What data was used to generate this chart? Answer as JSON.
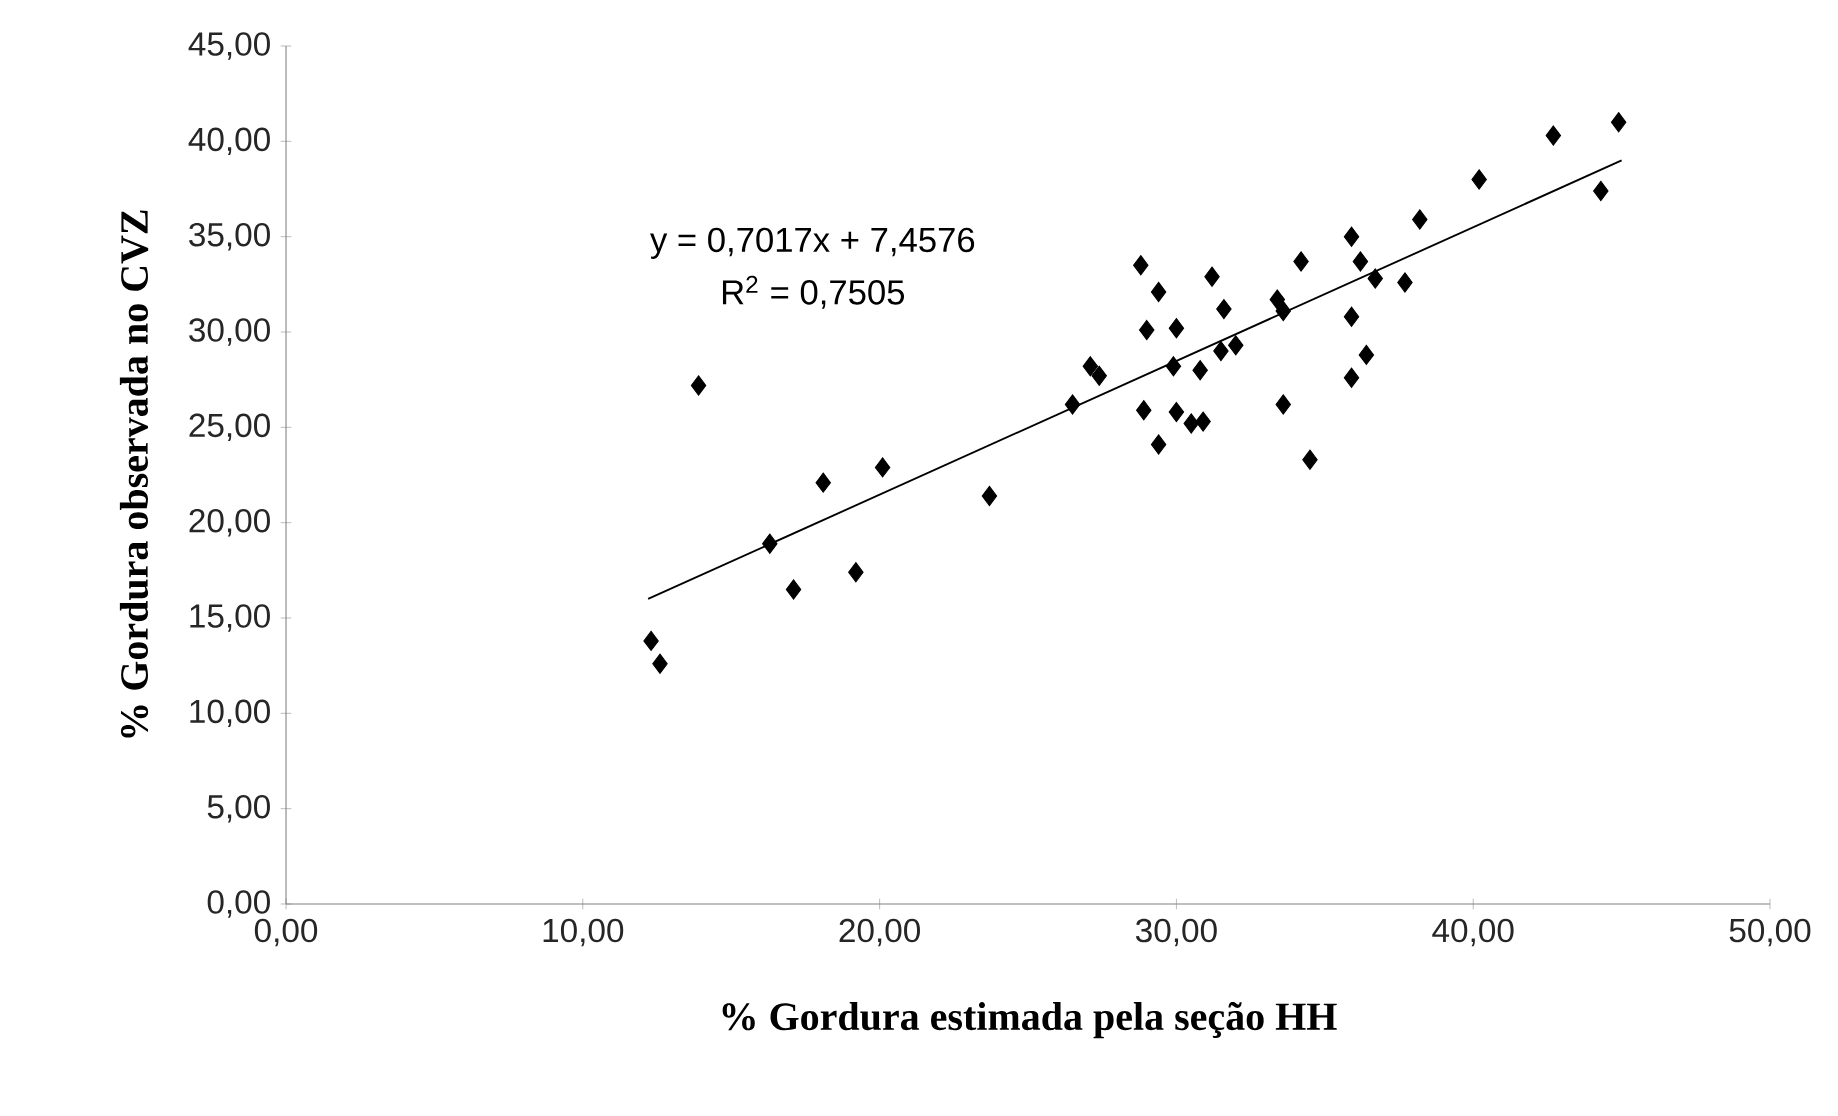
{
  "chart_data": {
    "type": "scatter",
    "xlabel": "% Gordura estimada pela seção HH",
    "ylabel": "% Gordura observada no CVZ",
    "annotations": [
      "y = 0,7017x + 7,4576",
      "R$^{2}$ = 0,7505"
    ],
    "xlim": [
      0,
      50
    ],
    "ylim": [
      0,
      45
    ],
    "xticks": [
      {
        "value": 0,
        "label": "0,00"
      },
      {
        "value": 10,
        "label": "10,00"
      },
      {
        "value": 20,
        "label": "20,00"
      },
      {
        "value": 30,
        "label": "30,00"
      },
      {
        "value": 40,
        "label": "40,00"
      },
      {
        "value": 50,
        "label": "50,00"
      }
    ],
    "yticks": [
      {
        "value": 0,
        "label": "0,00"
      },
      {
        "value": 5,
        "label": "5,00"
      },
      {
        "value": 10,
        "label": "10,00"
      },
      {
        "value": 15,
        "label": "15,00"
      },
      {
        "value": 20,
        "label": "20,00"
      },
      {
        "value": 25,
        "label": "25,00"
      },
      {
        "value": 30,
        "label": "30,00"
      },
      {
        "value": 35,
        "label": "35,00"
      },
      {
        "value": 40,
        "label": "40,00"
      },
      {
        "value": 45,
        "label": "45,00"
      }
    ],
    "series": [
      {
        "color": "#000000",
        "marker": "diamond",
        "x": [
          12.3,
          12.6,
          13.9,
          16.3,
          17.1,
          18.1,
          19.2,
          20.1,
          23.7,
          26.5,
          27.1,
          27.4,
          28.8,
          28.9,
          29.0,
          29.4,
          29.4,
          29.9,
          30.0,
          30.0,
          30.5,
          30.9,
          31.2,
          31.6,
          30.8,
          31.5,
          32.0,
          33.4,
          33.6,
          33.6,
          34.2,
          34.5,
          35.9,
          35.9,
          35.9,
          36.4,
          36.2,
          36.7,
          37.7,
          38.2,
          40.2,
          42.7,
          44.3,
          44.9
        ],
        "values": [
          13.8,
          12.6,
          27.2,
          18.9,
          16.5,
          22.1,
          17.4,
          22.9,
          21.4,
          26.2,
          28.2,
          27.7,
          33.5,
          25.9,
          30.1,
          32.1,
          24.1,
          28.2,
          30.2,
          25.8,
          25.2,
          25.3,
          32.9,
          31.2,
          28.0,
          29.0,
          29.3,
          31.7,
          31.1,
          26.2,
          33.7,
          23.3,
          35.0,
          30.8,
          27.6,
          28.8,
          33.7,
          32.8,
          32.6,
          35.9,
          38.0,
          40.3,
          37.4,
          41.0
        ]
      },
      {
        "type": "line",
        "color": "#000000",
        "marker": "none",
        "line_style": "solid",
        "x": [
          12.2,
          45.0
        ],
        "values": [
          16.0,
          39.0
        ]
      }
    ]
  }
}
